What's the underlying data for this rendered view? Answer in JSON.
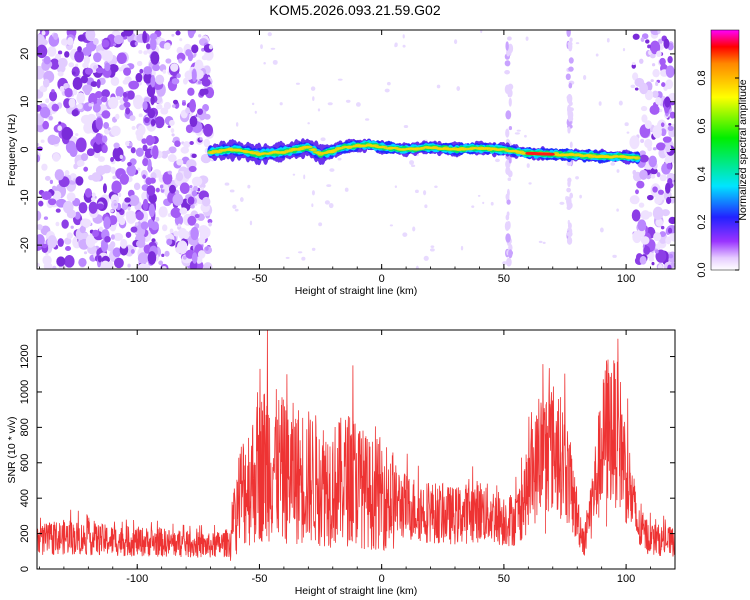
{
  "figure": {
    "title": "KOM5.2026.093.21.59.G02"
  },
  "chart_data": [
    {
      "type": "heatmap",
      "name": "spectrogram",
      "title": "KOM5.2026.093.21.59.G02",
      "xlabel": "Height of straight line (km)",
      "ylabel": "Frequency (Hz)",
      "xlim": [
        -141,
        120
      ],
      "ylim": [
        -25,
        25
      ],
      "xticks": [
        -100,
        -50,
        0,
        50,
        100
      ],
      "yticks": [
        -20,
        -10,
        0,
        10,
        20
      ],
      "colorbar": {
        "label": "Normalized spectral amplitude",
        "range": [
          0,
          1
        ],
        "ticks": [
          0.0,
          0.2,
          0.4,
          0.6,
          0.8
        ],
        "tick_labels": [
          "0.0",
          "0.2",
          "0.4",
          "0.6",
          "0.8"
        ]
      },
      "description_points": {
        "trail_x_range_km": [
          -70,
          105
        ],
        "trail_frequency_hz": [
          [
            -70,
            -0.5
          ],
          [
            -60,
            0.0
          ],
          [
            -50,
            -1.0
          ],
          [
            -40,
            -0.5
          ],
          [
            -30,
            0.5
          ],
          [
            -25,
            -1.0
          ],
          [
            -15,
            0.5
          ],
          [
            -5,
            1.0
          ],
          [
            0,
            0.5
          ],
          [
            10,
            0.0
          ],
          [
            20,
            0.5
          ],
          [
            30,
            0.0
          ],
          [
            40,
            0.3
          ],
          [
            50,
            0.0
          ],
          [
            60,
            -0.8
          ],
          [
            70,
            -1.0
          ],
          [
            80,
            -1.2
          ],
          [
            90,
            -1.5
          ],
          [
            100,
            -1.5
          ],
          [
            105,
            -1.8
          ]
        ],
        "trail_peak_km": 65,
        "noise_regions_km": [
          [
            -141,
            -70
          ],
          [
            103,
            120
          ]
        ],
        "vertical_stripes_km": [
          52,
          77
        ]
      }
    },
    {
      "type": "line",
      "name": "snr",
      "xlabel": "Height of straight line (km)",
      "ylabel": "SNR (10 * v/v)",
      "xlim": [
        -141,
        120
      ],
      "ylim": [
        0,
        1350
      ],
      "xticks": [
        -100,
        -50,
        0,
        50,
        100
      ],
      "yticks": [
        0,
        200,
        400,
        600,
        800,
        1000,
        1200
      ],
      "series_color": "#ee3333",
      "envelope": {
        "x": [
          -141,
          -130,
          -110,
          -90,
          -70,
          -62,
          -58,
          -50,
          -47,
          -40,
          -30,
          -20,
          -12,
          -5,
          0,
          10,
          20,
          30,
          40,
          50,
          55,
          60,
          65,
          70,
          75,
          80,
          83,
          87,
          92,
          97,
          100,
          105,
          110,
          120
        ],
        "y": [
          160,
          180,
          160,
          150,
          130,
          150,
          420,
          560,
          620,
          550,
          520,
          470,
          520,
          420,
          430,
          350,
          320,
          300,
          330,
          280,
          280,
          450,
          650,
          690,
          600,
          300,
          150,
          450,
          800,
          750,
          550,
          230,
          170,
          150
        ]
      },
      "spikes": [
        {
          "x": -47,
          "y": 1350
        },
        {
          "x": -50,
          "y": 1130
        },
        {
          "x": -39,
          "y": 1100
        },
        {
          "x": -12,
          "y": 1150
        },
        {
          "x": 92,
          "y": 1050
        },
        {
          "x": 67,
          "y": 930
        }
      ]
    }
  ]
}
